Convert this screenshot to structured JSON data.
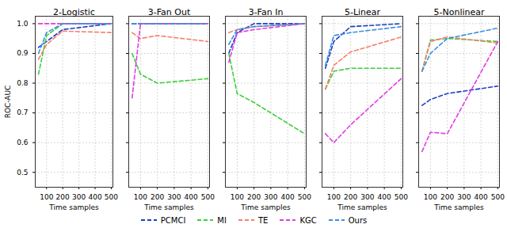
{
  "chart_data": [
    {
      "type": "line",
      "title": "2-Logistic",
      "xlabel": "Time samples",
      "ylabel": "ROC-AUC",
      "x": [
        50,
        100,
        200,
        500
      ],
      "xlim": [
        30,
        510
      ],
      "xticks": [
        100,
        200,
        300,
        400,
        500
      ],
      "ylim": [
        0.45,
        1.025
      ],
      "yticks": [
        0.5,
        0.6,
        0.7,
        0.8,
        0.9,
        {
          "value": 1,
          "label": "1.0"
        }
      ],
      "grid": true,
      "legend": "bottom",
      "series": [
        {
          "name": "PCMCI",
          "color": "#1f3fbf",
          "line_style": "dashed",
          "values": [
            0.92,
            0.94,
            0.98,
            1.0
          ]
        },
        {
          "name": "MI",
          "color": "#3ccf3c",
          "line_style": "dashed",
          "values": [
            0.83,
            0.96,
            1.0,
            1.0
          ]
        },
        {
          "name": "TE",
          "color": "#f4806c",
          "line_style": "dashed",
          "values": [
            0.88,
            0.93,
            0.975,
            0.97
          ]
        },
        {
          "name": "KGC",
          "color": "#e03ee0",
          "line_style": "dashed",
          "values": [
            1.0,
            1.0,
            1.0,
            1.0
          ]
        },
        {
          "name": "Ours",
          "color": "#3a8fe0",
          "line_style": "dashed",
          "values": [
            0.9,
            0.97,
            1.0,
            1.0
          ]
        }
      ]
    },
    {
      "type": "line",
      "title": "3-Fan Out",
      "xlabel": "Time samples",
      "x": [
        50,
        100,
        200,
        500
      ],
      "xlim": [
        30,
        510
      ],
      "xticks": [
        100,
        200,
        300,
        400,
        500
      ],
      "ylim": [
        0.45,
        1.025
      ],
      "yticks": [
        0.5,
        0.6,
        0.7,
        0.8,
        0.9,
        {
          "value": 1,
          "label": "1.0"
        }
      ],
      "grid": true,
      "legend": "bottom",
      "tick_labels": "x",
      "series": [
        {
          "name": "PCMCI",
          "color": "#1f3fbf",
          "line_style": "dashed",
          "values": [
            1.0,
            1.0,
            1.0,
            1.0
          ]
        },
        {
          "name": "MI",
          "color": "#3ccf3c",
          "line_style": "dashed",
          "values": [
            0.9,
            0.83,
            0.8,
            0.815
          ]
        },
        {
          "name": "TE",
          "color": "#f4806c",
          "line_style": "dashed",
          "values": [
            0.97,
            0.95,
            0.96,
            0.94
          ]
        },
        {
          "name": "KGC",
          "color": "#e03ee0",
          "line_style": "dashed",
          "values": [
            0.75,
            1.0,
            1.0,
            1.0
          ]
        },
        {
          "name": "Ours",
          "color": "#3a8fe0",
          "line_style": "dashed",
          "values": [
            1.0,
            1.0,
            1.0,
            1.0
          ]
        }
      ]
    },
    {
      "type": "line",
      "title": "3-Fan In",
      "xlabel": "Time samples",
      "x": [
        50,
        100,
        200,
        500
      ],
      "xlim": [
        30,
        510
      ],
      "xticks": [
        100,
        200,
        300,
        400,
        500
      ],
      "ylim": [
        0.45,
        1.025
      ],
      "yticks": [
        0.5,
        0.6,
        0.7,
        0.8,
        0.9,
        {
          "value": 1,
          "label": "1.0"
        }
      ],
      "grid": true,
      "legend": "bottom",
      "tick_labels": "x",
      "series": [
        {
          "name": "PCMCI",
          "color": "#1f3fbf",
          "line_style": "dashed",
          "values": [
            0.9,
            0.97,
            1.0,
            1.0
          ]
        },
        {
          "name": "MI",
          "color": "#3ccf3c",
          "line_style": "dashed",
          "values": [
            0.9,
            0.765,
            0.735,
            0.63
          ]
        },
        {
          "name": "TE",
          "color": "#f4806c",
          "line_style": "dashed",
          "values": [
            0.97,
            0.98,
            0.99,
            1.0
          ]
        },
        {
          "name": "KGC",
          "color": "#e03ee0",
          "line_style": "dashed",
          "values": [
            0.87,
            0.97,
            0.98,
            1.0
          ]
        },
        {
          "name": "Ours",
          "color": "#3a8fe0",
          "line_style": "dashed",
          "values": [
            0.93,
            0.98,
            0.99,
            1.0
          ]
        }
      ]
    },
    {
      "type": "line",
      "title": "5-Linear",
      "xlabel": "Time samples",
      "x": [
        50,
        100,
        200,
        500
      ],
      "xlim": [
        30,
        510
      ],
      "xticks": [
        100,
        200,
        300,
        400,
        500
      ],
      "ylim": [
        0.45,
        1.025
      ],
      "yticks": [
        0.5,
        0.6,
        0.7,
        0.8,
        0.9,
        {
          "value": 1,
          "label": "1.0"
        }
      ],
      "grid": true,
      "legend": "bottom",
      "tick_labels": "x",
      "series": [
        {
          "name": "PCMCI",
          "color": "#1f3fbf",
          "line_style": "dashed",
          "values": [
            0.85,
            0.94,
            0.99,
            1.0
          ]
        },
        {
          "name": "MI",
          "color": "#3ccf3c",
          "line_style": "dashed",
          "values": [
            0.78,
            0.84,
            0.85,
            0.85
          ]
        },
        {
          "name": "TE",
          "color": "#f4806c",
          "line_style": "dashed",
          "values": [
            0.78,
            0.86,
            0.905,
            0.955
          ]
        },
        {
          "name": "KGC",
          "color": "#e03ee0",
          "line_style": "dashed",
          "values": [
            0.63,
            0.6,
            0.66,
            0.815
          ]
        },
        {
          "name": "Ours",
          "color": "#3a8fe0",
          "line_style": "dashed",
          "values": [
            0.86,
            0.96,
            0.97,
            0.99
          ]
        }
      ]
    },
    {
      "type": "line",
      "title": "5-Nonlinear",
      "xlabel": "Time samples",
      "x": [
        50,
        100,
        200,
        500
      ],
      "xlim": [
        30,
        510
      ],
      "xticks": [
        100,
        200,
        300,
        400,
        500
      ],
      "ylim": [
        0.45,
        1.025
      ],
      "yticks": [
        0.5,
        0.6,
        0.7,
        0.8,
        0.9,
        {
          "value": 1,
          "label": "1.0"
        }
      ],
      "grid": true,
      "legend": "bottom",
      "tick_labels": "x",
      "series": [
        {
          "name": "PCMCI",
          "color": "#1f3fbf",
          "line_style": "dashed",
          "values": [
            0.725,
            0.745,
            0.765,
            0.79
          ]
        },
        {
          "name": "MI",
          "color": "#3ccf3c",
          "line_style": "dashed",
          "values": [
            0.84,
            0.945,
            0.95,
            0.94
          ]
        },
        {
          "name": "TE",
          "color": "#f4806c",
          "line_style": "dashed",
          "values": [
            0.84,
            0.94,
            0.955,
            0.935
          ]
        },
        {
          "name": "KGC",
          "color": "#e03ee0",
          "line_style": "dashed",
          "values": [
            0.57,
            0.635,
            0.63,
            0.94
          ]
        },
        {
          "name": "Ours",
          "color": "#3a8fe0",
          "line_style": "dashed",
          "values": [
            0.84,
            0.9,
            0.95,
            0.985
          ]
        }
      ]
    }
  ]
}
